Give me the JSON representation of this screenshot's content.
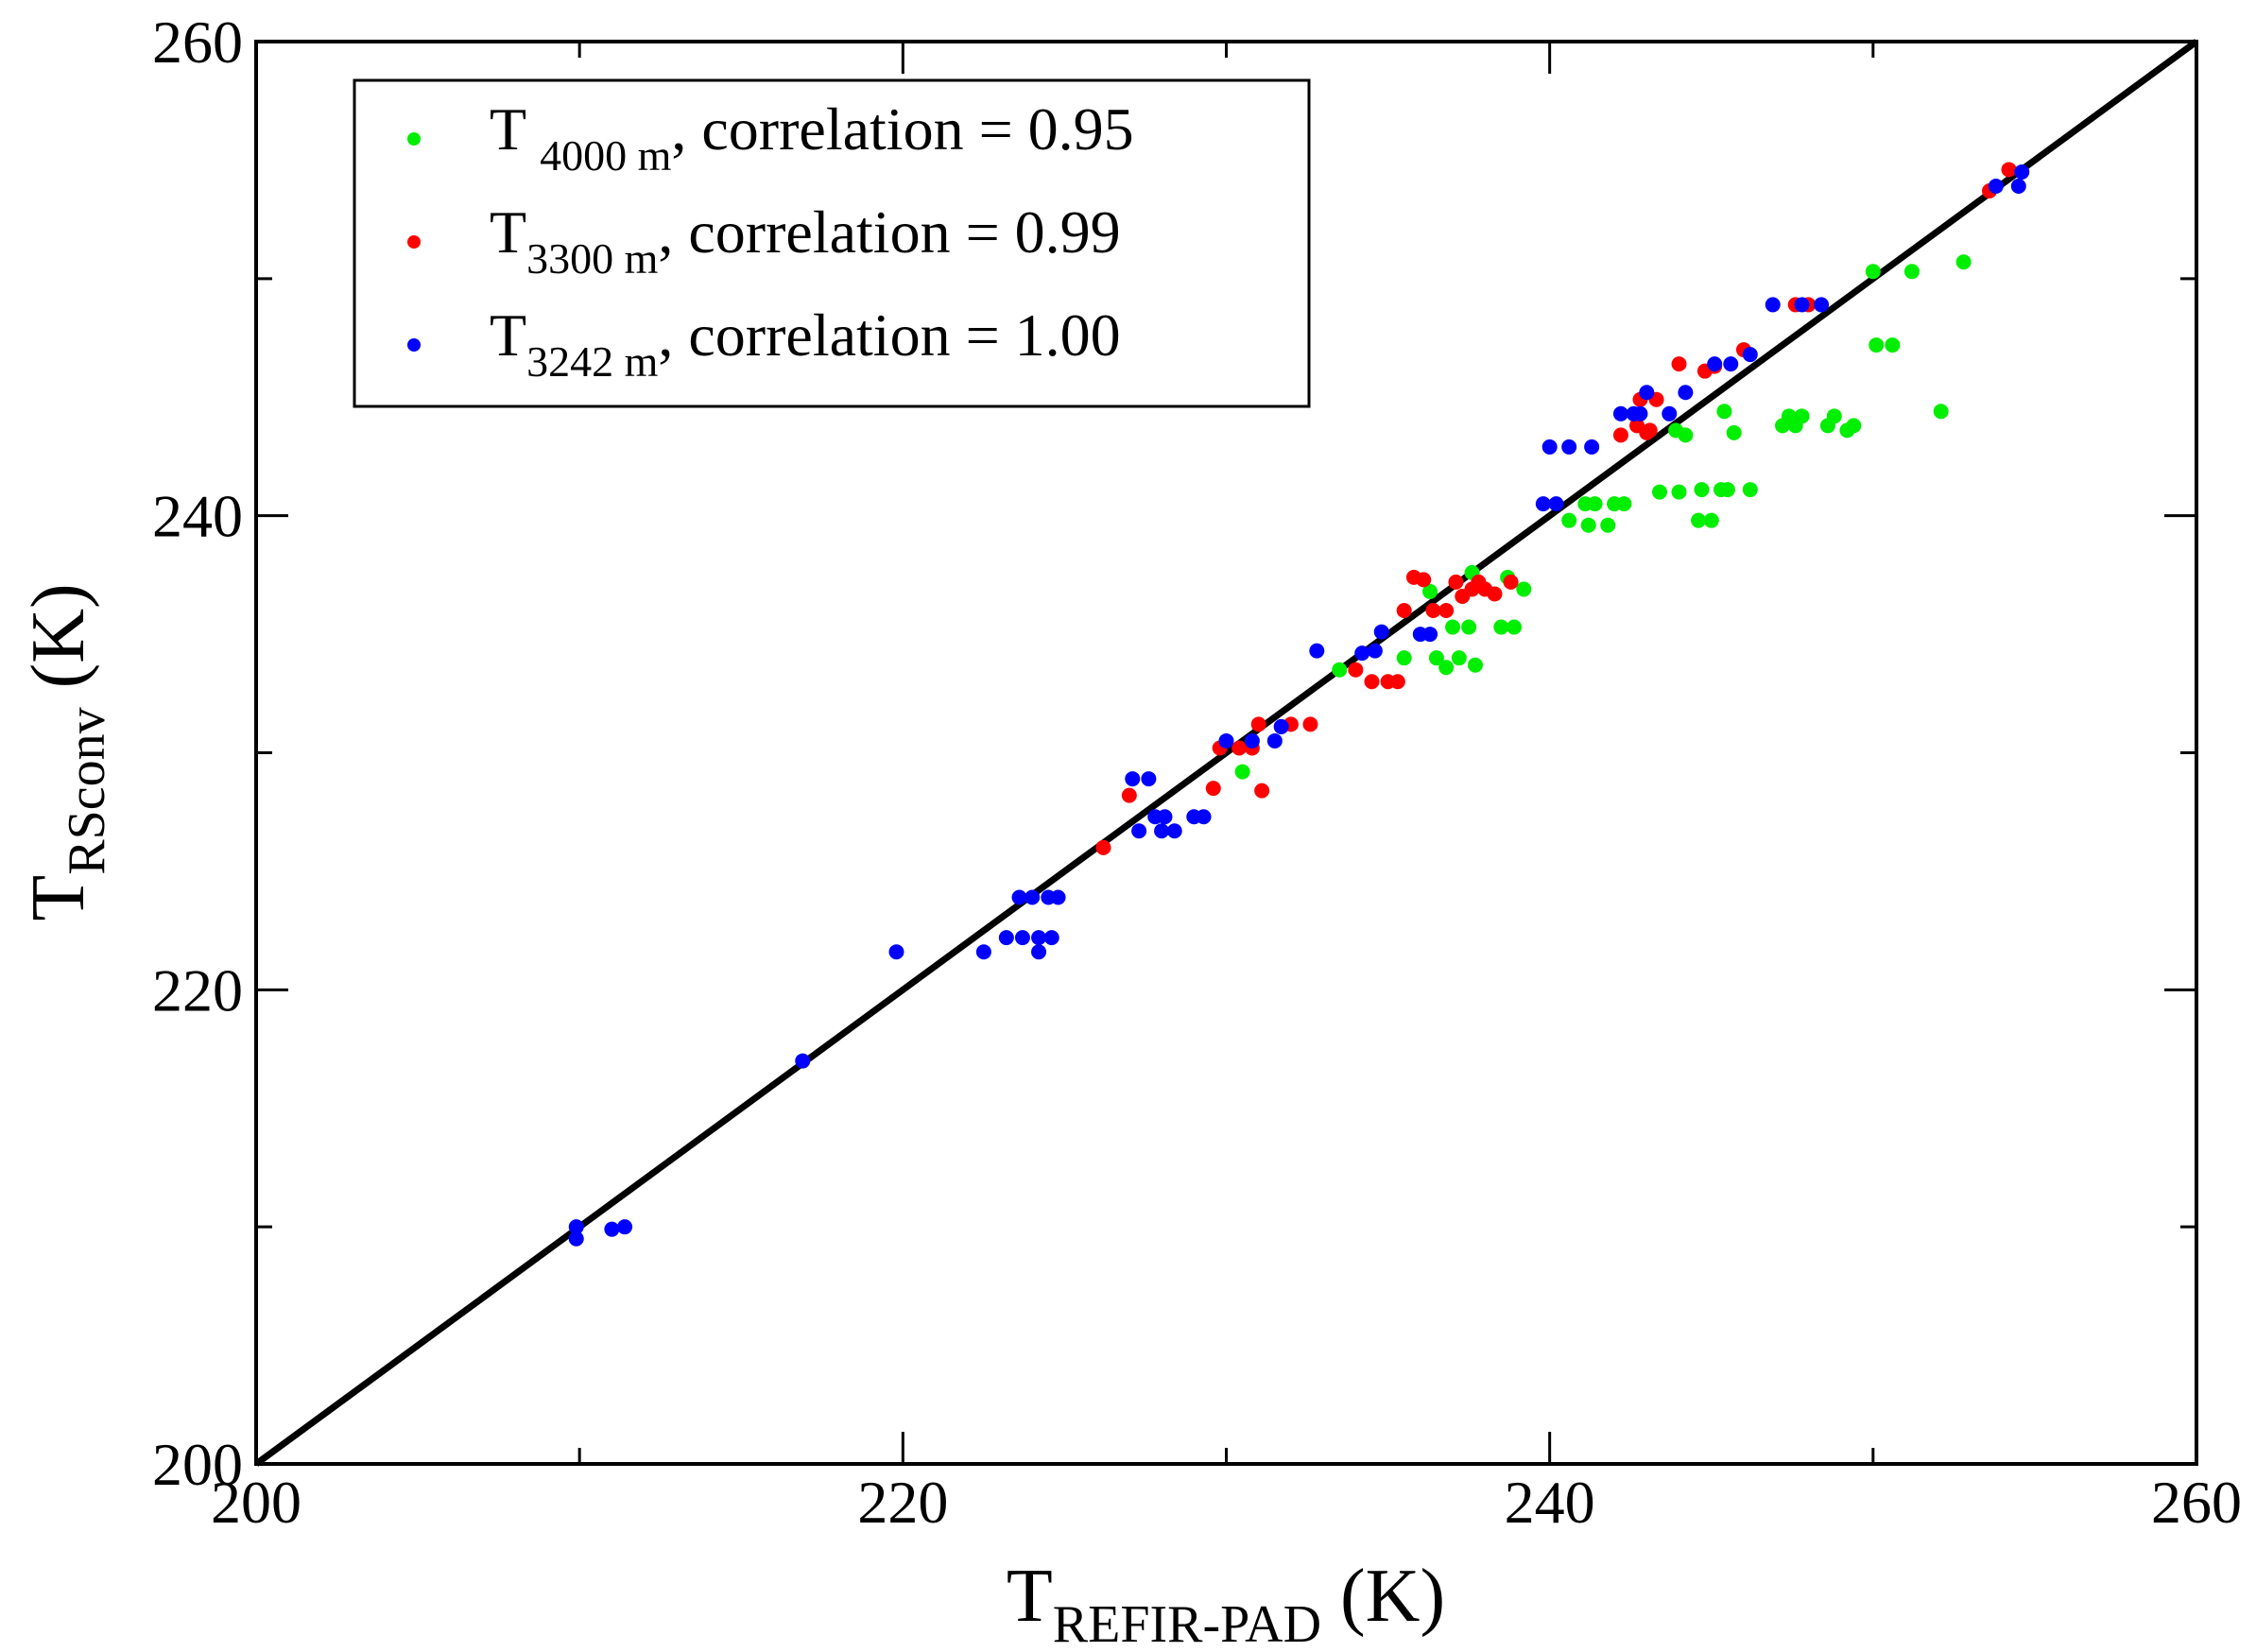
{
  "chart_data": {
    "type": "scatter",
    "title": "",
    "xlabel": {
      "main": "T",
      "sub": "REFIR-PAD",
      "unit": " (K)"
    },
    "ylabel": {
      "main": "T",
      "sub": "RSconv",
      "unit": " (K)"
    },
    "xlim": [
      200,
      260
    ],
    "ylim": [
      200,
      260
    ],
    "xticks": [
      "200",
      "220",
      "240",
      "260"
    ],
    "yticks": [
      "200",
      "220",
      "240",
      "260"
    ],
    "grid": false,
    "legend_position": "top-left",
    "reference_line": {
      "name": "1:1 line",
      "x": [
        200,
        260
      ],
      "y": [
        200,
        260
      ],
      "color": "#000000"
    },
    "series": [
      {
        "name": "T 4000 m, correlation = 0.95",
        "label_main": "T",
        "label_sub": "4000 m",
        "label_rest": ", correlation = 0.95",
        "color": "#00ee00",
        "points": [
          [
            230.5,
            229.2
          ],
          [
            233.5,
            233.5
          ],
          [
            235.5,
            234
          ],
          [
            236.3,
            236.8
          ],
          [
            236.5,
            234
          ],
          [
            236.8,
            233.6
          ],
          [
            237.2,
            234
          ],
          [
            237.0,
            235.3
          ],
          [
            237.5,
            235.3
          ],
          [
            237.6,
            237.6
          ],
          [
            237.7,
            233.7
          ],
          [
            238.5,
            235.3
          ],
          [
            238.9,
            235.3
          ],
          [
            238.7,
            237.4
          ],
          [
            239.2,
            236.9
          ],
          [
            240.6,
            239.8
          ],
          [
            241.1,
            240.5
          ],
          [
            241.2,
            239.6
          ],
          [
            241.4,
            240.5
          ],
          [
            242.0,
            240.5
          ],
          [
            241.8,
            239.6
          ],
          [
            242.3,
            240.5
          ],
          [
            243.4,
            241.0
          ],
          [
            243.9,
            243.6
          ],
          [
            244.0,
            241.0
          ],
          [
            244.2,
            243.4
          ],
          [
            244.6,
            239.8
          ],
          [
            244.7,
            241.1
          ],
          [
            245.0,
            239.8
          ],
          [
            245.3,
            241.1
          ],
          [
            245.4,
            244.4
          ],
          [
            245.5,
            241.1
          ],
          [
            245.7,
            243.5
          ],
          [
            246.2,
            241.1
          ],
          [
            247.2,
            243.8
          ],
          [
            247.4,
            244.2
          ],
          [
            247.6,
            243.8
          ],
          [
            247.8,
            244.2
          ],
          [
            248.6,
            243.8
          ],
          [
            248.8,
            244.2
          ],
          [
            249.2,
            243.6
          ],
          [
            249.4,
            243.8
          ],
          [
            250.0,
            250.3
          ],
          [
            250.1,
            247.2
          ],
          [
            250.6,
            247.2
          ],
          [
            251.2,
            250.3
          ],
          [
            252.1,
            244.4
          ],
          [
            252.8,
            250.7
          ]
        ]
      },
      {
        "name": "T 3300 m, correlation = 0.99",
        "label_main": "T",
        "label_sub": "3300 m",
        "label_rest": ", correlation = 0.99",
        "color": "#ff0000",
        "points": [
          [
            226.2,
            226.0
          ],
          [
            227.0,
            228.2
          ],
          [
            229.6,
            228.5
          ],
          [
            229.8,
            230.2
          ],
          [
            230.4,
            230.2
          ],
          [
            230.8,
            230.2
          ],
          [
            231.0,
            231.2
          ],
          [
            231.1,
            228.4
          ],
          [
            232.0,
            231.2
          ],
          [
            232.6,
            231.2
          ],
          [
            234.0,
            233.5
          ],
          [
            234.5,
            233.0
          ],
          [
            235.0,
            233.0
          ],
          [
            235.3,
            233.0
          ],
          [
            235.5,
            236.0
          ],
          [
            235.8,
            237.4
          ],
          [
            236.1,
            237.3
          ],
          [
            236.4,
            236.0
          ],
          [
            236.8,
            236.0
          ],
          [
            237.1,
            237.2
          ],
          [
            237.3,
            236.6
          ],
          [
            237.6,
            236.9
          ],
          [
            237.8,
            237.2
          ],
          [
            238.0,
            236.9
          ],
          [
            238.3,
            236.7
          ],
          [
            238.8,
            237.2
          ],
          [
            242.2,
            243.4
          ],
          [
            242.7,
            243.8
          ],
          [
            243.0,
            243.5
          ],
          [
            242.8,
            244.9
          ],
          [
            243.1,
            243.6
          ],
          [
            243.3,
            244.9
          ],
          [
            244.0,
            246.4
          ],
          [
            244.8,
            246.1
          ],
          [
            245.1,
            246.3
          ],
          [
            246.0,
            247.0
          ],
          [
            247.6,
            248.9
          ],
          [
            248.0,
            248.9
          ],
          [
            253.6,
            253.7
          ],
          [
            254.2,
            254.6
          ]
        ]
      },
      {
        "name": "T 3242 m, correlation = 1.00",
        "label_main": "T",
        "label_sub": "3242 m",
        "label_rest": ", correlation = 1.00",
        "color": "#0000ff",
        "points": [
          [
            209.9,
            210.0
          ],
          [
            209.9,
            209.5
          ],
          [
            211.0,
            209.9
          ],
          [
            211.4,
            210.0
          ],
          [
            216.9,
            217.0
          ],
          [
            219.8,
            221.6
          ],
          [
            222.5,
            221.6
          ],
          [
            223.2,
            222.2
          ],
          [
            223.6,
            223.9
          ],
          [
            223.7,
            222.2
          ],
          [
            224.0,
            223.9
          ],
          [
            224.2,
            222.2
          ],
          [
            224.2,
            221.6
          ],
          [
            224.5,
            223.9
          ],
          [
            224.6,
            222.2
          ],
          [
            224.8,
            223.9
          ],
          [
            227.1,
            228.9
          ],
          [
            227.3,
            226.7
          ],
          [
            227.6,
            228.9
          ],
          [
            227.8,
            227.3
          ],
          [
            228.0,
            226.7
          ],
          [
            228.1,
            227.3
          ],
          [
            228.4,
            226.7
          ],
          [
            229.0,
            227.3
          ],
          [
            229.3,
            227.3
          ],
          [
            230.0,
            230.5
          ],
          [
            230.8,
            230.5
          ],
          [
            231.5,
            230.5
          ],
          [
            231.7,
            231.1
          ],
          [
            232.8,
            234.3
          ],
          [
            234.2,
            234.2
          ],
          [
            234.6,
            234.3
          ],
          [
            234.8,
            235.1
          ],
          [
            236.0,
            235.0
          ],
          [
            236.3,
            235.0
          ],
          [
            239.8,
            240.5
          ],
          [
            240.0,
            242.9
          ],
          [
            240.2,
            240.5
          ],
          [
            240.6,
            242.9
          ],
          [
            241.3,
            242.9
          ],
          [
            242.2,
            244.3
          ],
          [
            242.6,
            244.3
          ],
          [
            242.8,
            244.3
          ],
          [
            243.0,
            245.2
          ],
          [
            243.7,
            244.3
          ],
          [
            244.2,
            245.2
          ],
          [
            245.1,
            246.4
          ],
          [
            245.6,
            246.4
          ],
          [
            246.2,
            246.8
          ],
          [
            246.9,
            248.9
          ],
          [
            247.8,
            248.9
          ],
          [
            248.4,
            248.9
          ],
          [
            253.8,
            253.9
          ],
          [
            254.5,
            253.9
          ],
          [
            254.6,
            254.5
          ]
        ]
      }
    ]
  }
}
